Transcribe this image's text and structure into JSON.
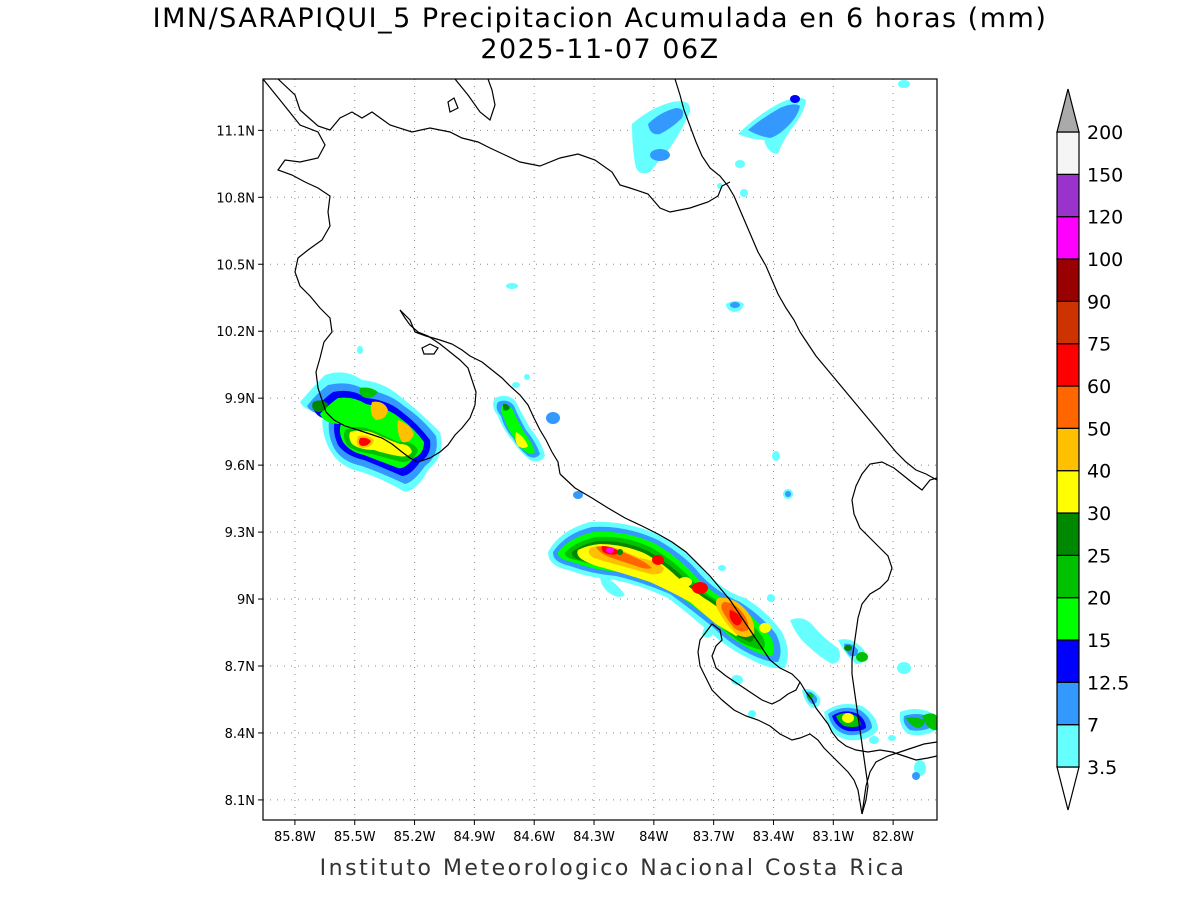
{
  "title": {
    "line1": "IMN/SARAPIQUI_5 Precipitacion Acumulada en 6 horas (mm)",
    "line2": "2025-11-07 06Z"
  },
  "credit": "Instituto Meteorologico Nacional Costa Rica",
  "axes": {
    "lon_ticks": [
      "85.8W",
      "85.5W",
      "85.2W",
      "84.9W",
      "84.6W",
      "84.3W",
      "84W",
      "83.7W",
      "83.4W",
      "83.1W",
      "82.8W"
    ],
    "lat_ticks": [
      "11.1N",
      "10.8N",
      "10.5N",
      "10.2N",
      "9.9N",
      "9.6N",
      "9.3N",
      "9N",
      "8.7N",
      "8.4N",
      "8.1N"
    ],
    "lon_range": [
      -85.96,
      -82.58
    ],
    "lat_range": [
      8.01,
      11.33
    ],
    "grid": true,
    "grid_style": "dotted"
  },
  "colorbar": {
    "orientation": "vertical",
    "position": "right",
    "levels": [
      "3.5",
      "7",
      "12.5",
      "15",
      "20",
      "25",
      "30",
      "40",
      "50",
      "60",
      "75",
      "90",
      "100",
      "120",
      "150",
      "200"
    ],
    "colors": [
      "#ffffff",
      "#66ffff",
      "#3399ff",
      "#0000ff",
      "#00ff00",
      "#00c000",
      "#008800",
      "#ffff00",
      "#ffc000",
      "#ff6600",
      "#ff0000",
      "#cc3300",
      "#990000",
      "#ff00ff",
      "#9933cc",
      "#f5f5f5",
      "#aaaaaa"
    ]
  }
}
